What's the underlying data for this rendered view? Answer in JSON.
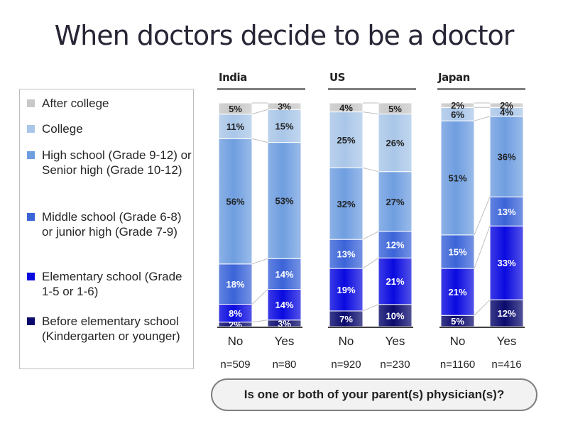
{
  "title": "When doctors decide to be a doctor",
  "question": "Is one or both of your parent(s) physician(s)?",
  "legend": [
    {
      "label": "After college",
      "color": "#c8c8c8"
    },
    {
      "label": "College",
      "color": "#a9c6e8"
    },
    {
      "label": "High school (Grade 9-12) or Senior high (Grade 10-12)",
      "color": "#6f9ee0"
    },
    {
      "label": "Middle school (Grade 6-8) or junior high (Grade 7-9)",
      "color": "#3b64d8"
    },
    {
      "label": "Elementary school (Grade 1-5 or 1-6)",
      "color": "#0a0ae0"
    },
    {
      "label": "Before elementary school (Kindergarten or younger)",
      "color": "#0a0a6e"
    }
  ],
  "chart_data": {
    "type": "bar",
    "stacked": true,
    "percent_stacked": true,
    "title": "When doctors decide to be a doctor",
    "xlabel": "Is one or both of your parent(s) physician(s)?",
    "ylabel": "",
    "ylim": [
      0,
      100
    ],
    "groups": [
      {
        "name": "India",
        "categories": [
          "No",
          "Yes"
        ],
        "n": [
          "n=509",
          "n=80"
        ]
      },
      {
        "name": "US",
        "categories": [
          "No",
          "Yes"
        ],
        "n": [
          "n=920",
          "n=230"
        ]
      },
      {
        "name": "Japan",
        "categories": [
          "No",
          "Yes"
        ],
        "n": [
          "n=1160",
          "n=416"
        ]
      }
    ],
    "series_order_bottom_to_top": [
      "Before elementary school (Kindergarten or younger)",
      "Elementary school (Grade 1-5 or 1-6)",
      "Middle school (Grade 6-8) or junior high (Grade 7-9)",
      "High school (Grade 9-12) or Senior high (Grade 10-12)",
      "College",
      "After college"
    ],
    "bars": [
      {
        "group": "India",
        "category": "No",
        "values": [
          2,
          8,
          18,
          56,
          11,
          5
        ]
      },
      {
        "group": "India",
        "category": "Yes",
        "values": [
          3,
          14,
          14,
          53,
          15,
          3
        ]
      },
      {
        "group": "US",
        "category": "No",
        "values": [
          7,
          19,
          13,
          32,
          25,
          4
        ]
      },
      {
        "group": "US",
        "category": "Yes",
        "values": [
          10,
          21,
          12,
          27,
          26,
          5
        ]
      },
      {
        "group": "Japan",
        "category": "No",
        "values": [
          5,
          21,
          15,
          51,
          6,
          2
        ]
      },
      {
        "group": "Japan",
        "category": "Yes",
        "values": [
          12,
          33,
          13,
          36,
          4,
          2
        ]
      }
    ],
    "legend_position": "left"
  }
}
